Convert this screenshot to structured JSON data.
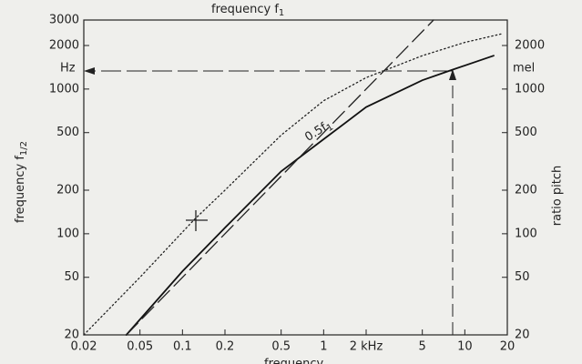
{
  "chart_data": {
    "type": "line",
    "title": {
      "text": "frequency f",
      "sub": "1"
    },
    "x_label": "frequency",
    "y_label": {
      "text": "frequency f",
      "sub": "1/2"
    },
    "y2_label": "ratio pitch",
    "annotations": {
      "hz": "Hz",
      "mel": "mel",
      "half": {
        "text": "0.5f",
        "sub": "1"
      }
    },
    "log_x": true,
    "log_y": true,
    "xlim": [
      0.02,
      20
    ],
    "xticks": [
      0.02,
      0.05,
      0.1,
      0.2,
      0.5,
      1,
      {
        "value": 2,
        "label": "2 kHz"
      },
      5,
      10,
      20
    ],
    "ylim": [
      20,
      3000
    ],
    "yticks": [
      20,
      50,
      100,
      200,
      500,
      1000,
      2000,
      3000
    ],
    "y2lim": [
      20,
      3000
    ],
    "y2ticks": [
      20,
      50,
      100,
      200,
      500,
      1000,
      2000
    ],
    "series": [
      {
        "color": "#111111",
        "style": "solid",
        "axis": "y2",
        "x": [
          0.04,
          0.1,
          0.2,
          0.5,
          1,
          2,
          5,
          8,
          16
        ],
        "values": [
          20,
          55,
          110,
          270,
          450,
          750,
          1150,
          1350,
          1700
        ]
      },
      {
        "color": "#222222",
        "style": "dotted",
        "x": [
          0.02,
          0.05,
          0.12,
          0.2,
          0.5,
          1,
          2,
          5,
          10,
          18
        ],
        "values": [
          20,
          50,
          124,
          200,
          480,
          830,
          1200,
          1700,
          2100,
          2400
        ]
      },
      {
        "color": "#222222",
        "style": "dashed",
        "x": [
          0.04,
          6
        ],
        "values": [
          20,
          3000
        ]
      }
    ]
  }
}
